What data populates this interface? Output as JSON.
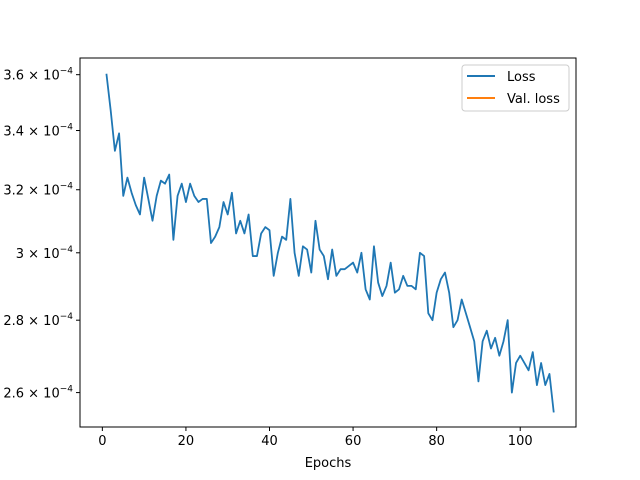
{
  "chart_data": {
    "type": "line",
    "title": "",
    "xlabel": "Epochs",
    "ylabel": "",
    "xlim": [
      -5.35,
      113.35
    ],
    "ylim": [
      0.000251,
      0.0003662
    ],
    "yscale": "log",
    "xticks": [
      0,
      20,
      40,
      60,
      80,
      100
    ],
    "xtick_labels": [
      "0",
      "20",
      "40",
      "60",
      "80",
      "100"
    ],
    "yticks": [
      0.00026,
      0.00028,
      0.0003,
      0.00032,
      0.00034,
      0.00036
    ],
    "ytick_labels": [
      {
        "mant": "2.6",
        "exp": "−4"
      },
      {
        "mant": "2.8",
        "exp": "−4"
      },
      {
        "mant": "3",
        "exp": "−4"
      },
      {
        "mant": "3.2",
        "exp": "−4"
      },
      {
        "mant": "3.4",
        "exp": "−4"
      },
      {
        "mant": "3.6",
        "exp": "−4"
      }
    ],
    "grid": false,
    "legend_position": "top-right",
    "series": [
      {
        "name": "Loss",
        "color": "#1f77b4",
        "x": [
          1,
          2,
          3,
          4,
          5,
          6,
          7,
          8,
          9,
          10,
          11,
          12,
          13,
          14,
          15,
          16,
          17,
          18,
          19,
          20,
          21,
          22,
          23,
          24,
          25,
          26,
          27,
          28,
          29,
          30,
          31,
          32,
          33,
          34,
          35,
          36,
          37,
          38,
          39,
          40,
          41,
          42,
          43,
          44,
          45,
          46,
          47,
          48,
          49,
          50,
          51,
          52,
          53,
          54,
          55,
          56,
          57,
          58,
          59,
          60,
          61,
          62,
          63,
          64,
          65,
          66,
          67,
          68,
          69,
          70,
          71,
          72,
          73,
          74,
          75,
          76,
          77,
          78,
          79,
          80,
          81,
          82,
          83,
          84,
          85,
          86,
          87,
          88,
          89,
          90,
          91,
          92,
          93,
          94,
          95,
          96,
          97,
          98,
          99,
          100,
          101,
          102,
          103,
          104,
          105,
          106,
          107,
          108
        ],
        "y": [
          0.00036,
          0.000347,
          0.000333,
          0.000339,
          0.000318,
          0.000324,
          0.000319,
          0.000315,
          0.000312,
          0.000324,
          0.000317,
          0.00031,
          0.000318,
          0.000323,
          0.000322,
          0.000325,
          0.000304,
          0.000318,
          0.000322,
          0.000316,
          0.000322,
          0.000318,
          0.000316,
          0.000317,
          0.000317,
          0.000303,
          0.000305,
          0.000308,
          0.000316,
          0.000312,
          0.000319,
          0.000306,
          0.00031,
          0.000306,
          0.000312,
          0.000299,
          0.000299,
          0.000306,
          0.000308,
          0.000307,
          0.000293,
          0.0003,
          0.000305,
          0.000304,
          0.000317,
          0.0003,
          0.000293,
          0.000302,
          0.000301,
          0.000294,
          0.00031,
          0.000301,
          0.000299,
          0.000292,
          0.000301,
          0.000293,
          0.000295,
          0.000295,
          0.000296,
          0.000297,
          0.000294,
          0.0003,
          0.000289,
          0.000286,
          0.000302,
          0.000291,
          0.000287,
          0.00029,
          0.000297,
          0.000288,
          0.000289,
          0.000293,
          0.00029,
          0.00029,
          0.000289,
          0.0003,
          0.000299,
          0.000282,
          0.00028,
          0.000288,
          0.000292,
          0.000294,
          0.000288,
          0.000278,
          0.00028,
          0.000286,
          0.000282,
          0.000278,
          0.000274,
          0.000263,
          0.000274,
          0.000277,
          0.000272,
          0.000275,
          0.00027,
          0.000274,
          0.00028,
          0.00026,
          0.000268,
          0.00027,
          0.000268,
          0.000266,
          0.000271,
          0.000262,
          0.000268,
          0.000262,
          0.000265,
          0.000255
        ]
      },
      {
        "name": "Val. loss",
        "color": "#ff7f0e",
        "x": [],
        "y": []
      }
    ]
  }
}
